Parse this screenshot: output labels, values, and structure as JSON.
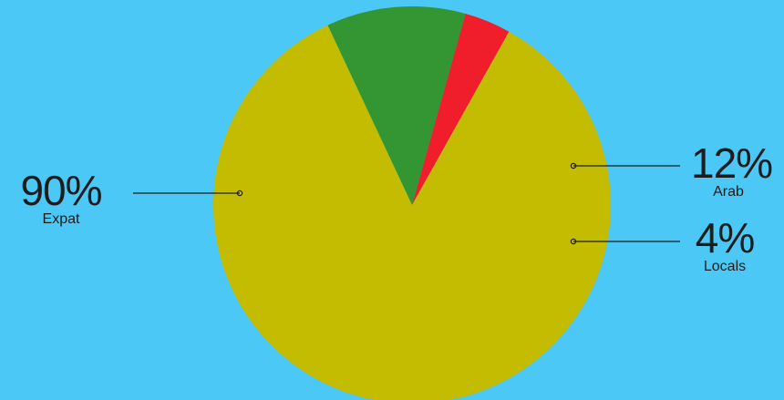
{
  "colors": {
    "background": "#4bc8f5",
    "leader_line": "#1c1c1c"
  },
  "chart_data": {
    "type": "pie",
    "title": "",
    "start_angle_deg": -60.8,
    "slices": [
      {
        "label": "Expat",
        "value": 90,
        "display": "90%",
        "color": "#c4bc00"
      },
      {
        "label": "Arab",
        "value": 12,
        "display": "12%",
        "color": "#339633"
      },
      {
        "label": "Locals",
        "value": 4,
        "display": "4%",
        "color": "#f01d2a"
      }
    ],
    "draw_order": [
      "Arab",
      "Locals",
      "Expat"
    ],
    "labels_position": "outside with leader lines"
  }
}
